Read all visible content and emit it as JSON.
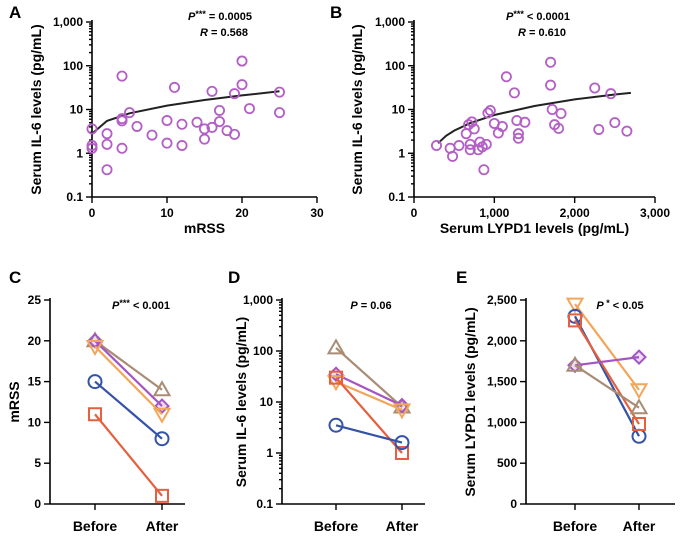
{
  "chart_data": [
    {
      "panel": "A",
      "type": "scatter",
      "title": "",
      "xlabel": "mRSS",
      "ylabel": "Serum IL-6 levels (pg/mL)",
      "xlim": [
        0,
        30
      ],
      "ylim": [
        0.1,
        1000
      ],
      "yscale": "log",
      "x_ticks": [
        0,
        10,
        20,
        30
      ],
      "x_tick_labels": [
        "0",
        "10",
        "20",
        "30"
      ],
      "y_ticks": [
        0.1,
        1,
        10,
        100,
        1000
      ],
      "y_tick_labels": [
        "0.1",
        "1",
        "10",
        "100",
        "1,000"
      ],
      "annotation": {
        "stat_name": "P",
        "stars": "***",
        "relation": " = ",
        "p_value": "0.0005",
        "r_line": "R = 0.568"
      },
      "marker_color": "#b35fc6",
      "points": [
        {
          "x": 0,
          "y": 1.3
        },
        {
          "x": 0,
          "y": 1.5
        },
        {
          "x": 0,
          "y": 3.6
        },
        {
          "x": 2,
          "y": 0.42
        },
        {
          "x": 2,
          "y": 1.6
        },
        {
          "x": 2,
          "y": 2.8
        },
        {
          "x": 4,
          "y": 58
        },
        {
          "x": 4,
          "y": 5.5
        },
        {
          "x": 4,
          "y": 6.2
        },
        {
          "x": 4,
          "y": 1.3
        },
        {
          "x": 5,
          "y": 8.5
        },
        {
          "x": 6,
          "y": 4.1
        },
        {
          "x": 8,
          "y": 2.6
        },
        {
          "x": 10,
          "y": 1.7
        },
        {
          "x": 10,
          "y": 5.6
        },
        {
          "x": 11,
          "y": 32
        },
        {
          "x": 12,
          "y": 1.5
        },
        {
          "x": 12,
          "y": 4.6
        },
        {
          "x": 14,
          "y": 5.1
        },
        {
          "x": 15,
          "y": 3.6
        },
        {
          "x": 15,
          "y": 2.1
        },
        {
          "x": 16,
          "y": 3.9
        },
        {
          "x": 16,
          "y": 26
        },
        {
          "x": 17,
          "y": 5.3
        },
        {
          "x": 17,
          "y": 9.5
        },
        {
          "x": 18,
          "y": 3.3
        },
        {
          "x": 19,
          "y": 2.7
        },
        {
          "x": 19,
          "y": 23
        },
        {
          "x": 20,
          "y": 128
        },
        {
          "x": 20,
          "y": 37
        },
        {
          "x": 21,
          "y": 10.5
        },
        {
          "x": 25,
          "y": 25
        },
        {
          "x": 25,
          "y": 8.5
        }
      ],
      "fit_curve": [
        {
          "x": 0,
          "y": 2.8
        },
        {
          "x": 2,
          "y": 5.5
        },
        {
          "x": 5,
          "y": 8.2
        },
        {
          "x": 10,
          "y": 12.3
        },
        {
          "x": 15,
          "y": 16.5
        },
        {
          "x": 20,
          "y": 21
        },
        {
          "x": 25,
          "y": 26
        }
      ]
    },
    {
      "panel": "B",
      "type": "scatter",
      "title": "",
      "xlabel": "Serum LYPD1 levels (pg/mL)",
      "ylabel": "Serum IL-6 levels (pg/mL)",
      "xlim": [
        0,
        3000
      ],
      "ylim": [
        0.1,
        1000
      ],
      "yscale": "log",
      "x_ticks": [
        0,
        1000,
        2000,
        3000
      ],
      "x_tick_labels": [
        "0",
        "1,000",
        "2,000",
        "3,000"
      ],
      "y_ticks": [
        0.1,
        1,
        10,
        100,
        1000
      ],
      "y_tick_labels": [
        "0.1",
        "1",
        "10",
        "100",
        "1,000"
      ],
      "annotation": {
        "stat_name": "P",
        "stars": "***",
        "relation": " < ",
        "p_value": "0.0001",
        "r_line": "R = 0.610"
      },
      "marker_color": "#b35fc6",
      "points": [
        {
          "x": 280,
          "y": 1.5
        },
        {
          "x": 450,
          "y": 1.3
        },
        {
          "x": 480,
          "y": 0.85
        },
        {
          "x": 560,
          "y": 1.5
        },
        {
          "x": 650,
          "y": 2.8
        },
        {
          "x": 680,
          "y": 4.5
        },
        {
          "x": 700,
          "y": 1.2
        },
        {
          "x": 700,
          "y": 1.6
        },
        {
          "x": 720,
          "y": 5.2
        },
        {
          "x": 750,
          "y": 3.6
        },
        {
          "x": 800,
          "y": 1.2
        },
        {
          "x": 820,
          "y": 1.8
        },
        {
          "x": 850,
          "y": 1.4
        },
        {
          "x": 870,
          "y": 0.42
        },
        {
          "x": 900,
          "y": 1.6
        },
        {
          "x": 920,
          "y": 8.3
        },
        {
          "x": 950,
          "y": 9.5
        },
        {
          "x": 1000,
          "y": 4.8
        },
        {
          "x": 1050,
          "y": 2.9
        },
        {
          "x": 1100,
          "y": 4.1
        },
        {
          "x": 1150,
          "y": 56
        },
        {
          "x": 1250,
          "y": 24
        },
        {
          "x": 1280,
          "y": 5.6
        },
        {
          "x": 1300,
          "y": 2.8
        },
        {
          "x": 1300,
          "y": 2.2
        },
        {
          "x": 1380,
          "y": 5.1
        },
        {
          "x": 1700,
          "y": 120
        },
        {
          "x": 1700,
          "y": 36
        },
        {
          "x": 1720,
          "y": 10
        },
        {
          "x": 1750,
          "y": 4.5
        },
        {
          "x": 1800,
          "y": 3.7
        },
        {
          "x": 1830,
          "y": 8.1
        },
        {
          "x": 2250,
          "y": 31
        },
        {
          "x": 2300,
          "y": 3.5
        },
        {
          "x": 2450,
          "y": 23
        },
        {
          "x": 2500,
          "y": 5
        },
        {
          "x": 2650,
          "y": 3.2
        }
      ],
      "fit_curve": [
        {
          "x": 300,
          "y": 1.7
        },
        {
          "x": 400,
          "y": 2.5
        },
        {
          "x": 500,
          "y": 3.3
        },
        {
          "x": 700,
          "y": 4.9
        },
        {
          "x": 1000,
          "y": 7.5
        },
        {
          "x": 1500,
          "y": 12
        },
        {
          "x": 2000,
          "y": 17
        },
        {
          "x": 2500,
          "y": 22
        },
        {
          "x": 2700,
          "y": 24
        }
      ]
    },
    {
      "panel": "C",
      "type": "line",
      "title": "",
      "xlabel": "",
      "ylabel": "mRSS",
      "categories": [
        "Before",
        "After"
      ],
      "ylim": [
        0,
        25
      ],
      "yscale": "linear",
      "y_ticks": [
        0,
        5,
        10,
        15,
        20,
        25
      ],
      "y_tick_labels": [
        "0",
        "5",
        "10",
        "15",
        "20",
        "25"
      ],
      "annotation": {
        "stat_name": "P",
        "stars": "***",
        "relation": " < ",
        "p_value": "0.001"
      },
      "series": [
        {
          "name": "brown",
          "color": "#a88c74",
          "marker": "triangle-up",
          "values": [
            20,
            14
          ]
        },
        {
          "name": "purple",
          "color": "#a455c4",
          "marker": "diamond",
          "values": [
            20,
            12
          ]
        },
        {
          "name": "orange",
          "color": "#f2a65a",
          "marker": "triangle-down",
          "values": [
            19.3,
            11
          ]
        },
        {
          "name": "blue",
          "color": "#3452a8",
          "marker": "circle",
          "values": [
            15,
            8
          ]
        },
        {
          "name": "red",
          "color": "#e4603e",
          "marker": "square",
          "values": [
            11,
            1
          ]
        }
      ]
    },
    {
      "panel": "D",
      "type": "line",
      "title": "",
      "xlabel": "",
      "ylabel": "Serum IL-6 levels (pg/mL)",
      "categories": [
        "Before",
        "After"
      ],
      "ylim": [
        0.1,
        1000
      ],
      "yscale": "log",
      "y_ticks": [
        0.1,
        1,
        10,
        100,
        1000
      ],
      "y_tick_labels": [
        "0.1",
        "1",
        "10",
        "100",
        "1,000"
      ],
      "annotation": {
        "stat_name": "P",
        "stars": "",
        "relation": " = ",
        "p_value": "0.06"
      },
      "series": [
        {
          "name": "brown",
          "color": "#a88c74",
          "marker": "triangle-up",
          "values": [
            115,
            8
          ]
        },
        {
          "name": "purple",
          "color": "#a455c4",
          "marker": "diamond",
          "values": [
            35,
            8.5
          ]
        },
        {
          "name": "orange",
          "color": "#f2a65a",
          "marker": "triangle-down",
          "values": [
            25,
            7
          ]
        },
        {
          "name": "red",
          "color": "#e4603e",
          "marker": "square",
          "values": [
            30,
            1
          ]
        },
        {
          "name": "blue",
          "color": "#3452a8",
          "marker": "circle",
          "values": [
            3.5,
            1.6
          ]
        }
      ]
    },
    {
      "panel": "E",
      "type": "line",
      "title": "",
      "xlabel": "",
      "ylabel": "Serum LYPD1 levels (pg/mL)",
      "categories": [
        "Before",
        "After"
      ],
      "ylim": [
        0,
        2500
      ],
      "yscale": "linear",
      "y_ticks": [
        0,
        500,
        1000,
        1500,
        2000,
        2500
      ],
      "y_tick_labels": [
        "0",
        "500",
        "1,000",
        "1,500",
        "2,000",
        "2,500"
      ],
      "annotation": {
        "stat_name": "P",
        "stars": " *",
        "relation": " < ",
        "p_value": "0.05"
      },
      "series": [
        {
          "name": "orange",
          "color": "#f2a65a",
          "marker": "triangle-down",
          "values": [
            2450,
            1400
          ]
        },
        {
          "name": "blue",
          "color": "#3452a8",
          "marker": "circle",
          "values": [
            2300,
            830
          ]
        },
        {
          "name": "red",
          "color": "#e4603e",
          "marker": "square",
          "values": [
            2250,
            980
          ]
        },
        {
          "name": "purple",
          "color": "#a455c4",
          "marker": "diamond",
          "values": [
            1700,
            1800
          ]
        },
        {
          "name": "brown",
          "color": "#a88c74",
          "marker": "triangle-up",
          "values": [
            1700,
            1180
          ]
        }
      ]
    }
  ]
}
